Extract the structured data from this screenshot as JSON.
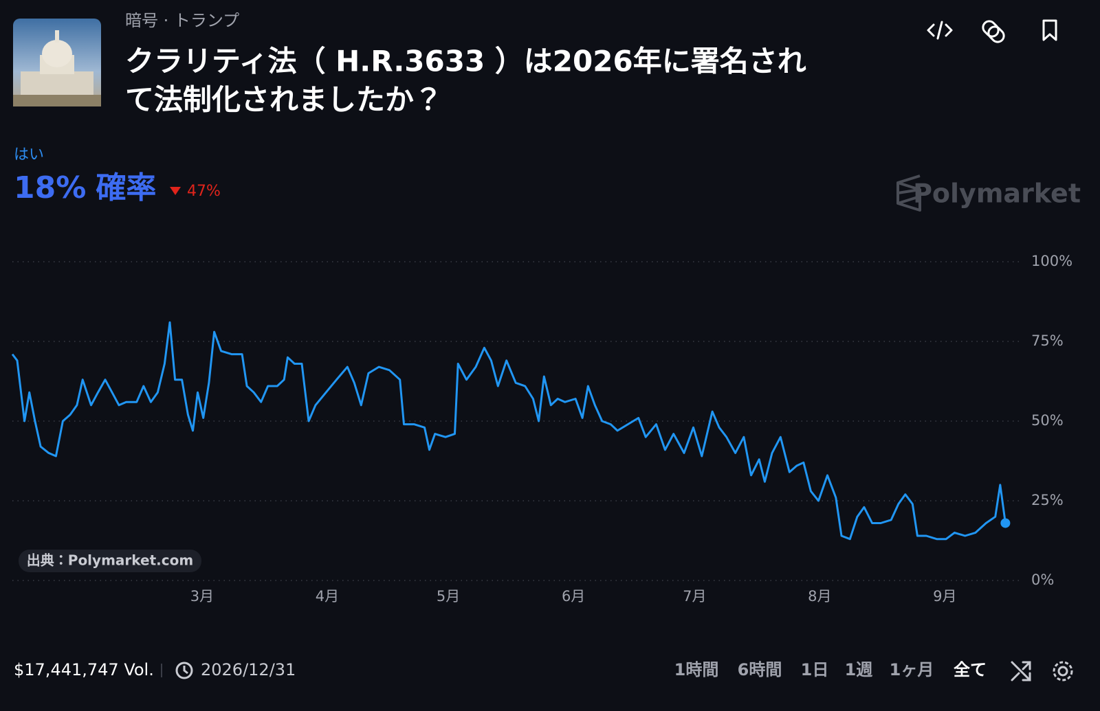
{
  "header": {
    "category": "暗号 · トランプ",
    "title_lines": [
      "クラリティ法（ H.R.3633 ）は2026年に署名され",
      "て法制化されましたか？"
    ],
    "probability": "18%",
    "probability_word": "確率",
    "change": "47%",
    "brand": "Polymarket"
  },
  "chart_data": {
    "type": "line",
    "x": [
      13,
      14.2,
      16,
      17.2,
      18.6,
      20,
      22,
      23.8,
      25.5,
      27.3,
      29,
      30.4,
      32.5,
      34.2,
      36,
      37.7,
      39.4,
      41.2,
      43.8,
      45.5,
      47.3,
      49,
      50.7,
      52,
      53.3,
      55,
      56.5,
      57.7,
      58.9,
      60.3,
      61.7,
      63,
      64.7,
      67.3,
      69.9,
      71.1,
      72.8,
      74.6,
      76.3,
      78.6,
      80.3,
      81.2,
      82.9,
      84.7,
      86.4,
      88.1,
      90.7,
      93.3,
      96,
      97.7,
      99.4,
      101.2,
      103.8,
      106.4,
      109,
      110,
      112.5,
      115.1,
      116.3,
      117.7,
      120.3,
      122.6,
      123.4,
      125.5,
      127.8,
      129.9,
      131.6,
      133.3,
      135.4,
      137.7,
      140,
      142,
      143.4,
      144.7,
      146.4,
      148.1,
      149.9,
      152.5,
      154.2,
      155.6,
      157.3,
      159.1,
      161.2,
      162.9,
      165.5,
      168.1,
      169.9,
      172.5,
      174.7,
      176.8,
      179.4,
      181.7,
      183.8,
      186.4,
      188.1,
      189.9,
      192.1,
      194.2,
      196,
      198,
      199.4,
      201.2,
      203.3,
      205.5,
      207.3,
      209,
      210.8,
      212.7,
      214.9,
      217,
      218.4,
      220.5,
      222.3,
      224,
      226,
      228.1,
      230.7,
      232.5,
      234.2,
      236,
      237.2,
      239.4,
      242,
      244.3,
      246.4,
      249,
      251.6,
      254.2,
      256.5,
      257.7,
      259
    ],
    "series": [
      {
        "name": "はい",
        "color": "#2196f3",
        "values": [
          71,
          69,
          50,
          59,
          50,
          42,
          40,
          39,
          50,
          52,
          55,
          63,
          55,
          59,
          63,
          59,
          55,
          56,
          56,
          61,
          56,
          59,
          68,
          81,
          63,
          63,
          52,
          47,
          59,
          51,
          62,
          78,
          72,
          71,
          71,
          61,
          59,
          56,
          61,
          61,
          63,
          70,
          68,
          68,
          50,
          55,
          59,
          63,
          67,
          62,
          55,
          65,
          67,
          66,
          63,
          49,
          49,
          48,
          41,
          46,
          45,
          46,
          68,
          63,
          67,
          73,
          69,
          61,
          69,
          62,
          61,
          57,
          50,
          64,
          55,
          57,
          56,
          57,
          51,
          61,
          55,
          50,
          49,
          47,
          49,
          51,
          45,
          49,
          41,
          46,
          40,
          48,
          39,
          53,
          48,
          45,
          40,
          45,
          33,
          38,
          31,
          40,
          45,
          34,
          36,
          37,
          28,
          25,
          33,
          26,
          14,
          13,
          20,
          23,
          18,
          18,
          19,
          24,
          27,
          24,
          14,
          14,
          13,
          13,
          15,
          14,
          15,
          18,
          20,
          30,
          18
        ]
      }
    ],
    "xlim": [
      13,
      262
    ],
    "xticks": [
      {
        "value": 60,
        "label": "3月"
      },
      {
        "value": 91,
        "label": "4月"
      },
      {
        "value": 121,
        "label": "5月"
      },
      {
        "value": 152,
        "label": "6月"
      },
      {
        "value": 182,
        "label": "7月"
      },
      {
        "value": 213,
        "label": "8月"
      },
      {
        "value": 244,
        "label": "9月"
      }
    ],
    "ylim": [
      0,
      100
    ],
    "yticks": [
      {
        "value": 0,
        "label": "0%"
      },
      {
        "value": 25,
        "label": "25%"
      },
      {
        "value": 50,
        "label": "50%"
      },
      {
        "value": 75,
        "label": "75%"
      },
      {
        "value": 100,
        "label": "100%"
      }
    ],
    "grid": true,
    "source": "出典：Polymarket.com"
  },
  "footer": {
    "volume": "$17,441,747 Vol.",
    "end_date": "2026/12/31",
    "ranges": [
      "1時間",
      "6時間",
      "1日",
      "1週",
      "1ヶ月",
      "全て"
    ]
  }
}
